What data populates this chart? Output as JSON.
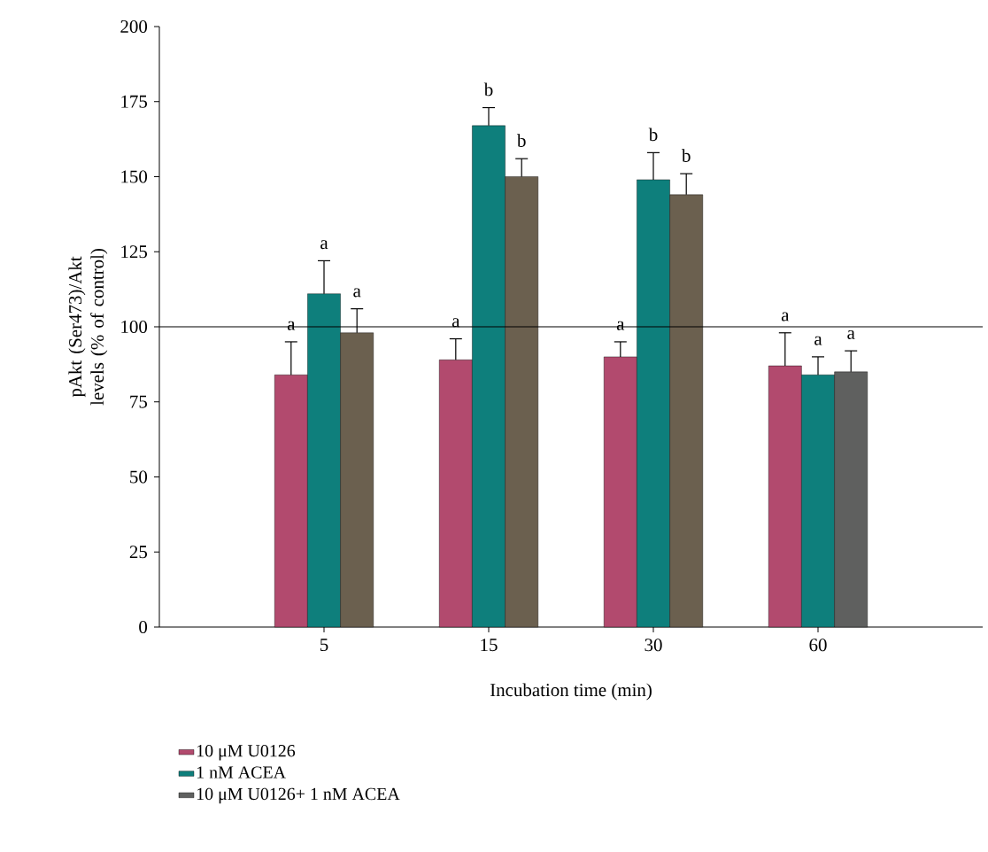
{
  "chart_data": {
    "type": "bar",
    "xlabel": "Incubation time (min)",
    "ylabel": "pAkt (Ser473)/Akt levels (% of control)",
    "categories": [
      "5",
      "15",
      "30",
      "60"
    ],
    "series": [
      {
        "name": "10 μM U0126",
        "color": "#b24a6e",
        "values": [
          84,
          89,
          90,
          87
        ],
        "errors": [
          11,
          7,
          5,
          11
        ]
      },
      {
        "name": "1 nM ACEA",
        "color": "#0e7f7c",
        "values": [
          111,
          167,
          149,
          84
        ],
        "errors": [
          11,
          6,
          9,
          6
        ]
      },
      {
        "name": "10 μM U0126+ 1 nM ACEA",
        "color": "#5f605f",
        "colors": [
          "#6b604f",
          "#6b604f",
          "#6b604f",
          "#5f605f"
        ],
        "values": [
          98,
          150,
          144,
          85
        ],
        "errors": [
          8,
          6,
          7,
          7
        ]
      }
    ],
    "ylim": [
      0,
      200
    ],
    "yticks": [
      0,
      25,
      50,
      75,
      100,
      125,
      150,
      175,
      200
    ],
    "ref_lines": [
      {
        "axis": "y",
        "value": 100,
        "color": "#000000"
      }
    ],
    "legend": "bottom",
    "annotations": [
      "a",
      "a",
      "a",
      "a",
      "b",
      "b",
      "a",
      "b",
      "b",
      "a",
      "a",
      "a"
    ]
  }
}
